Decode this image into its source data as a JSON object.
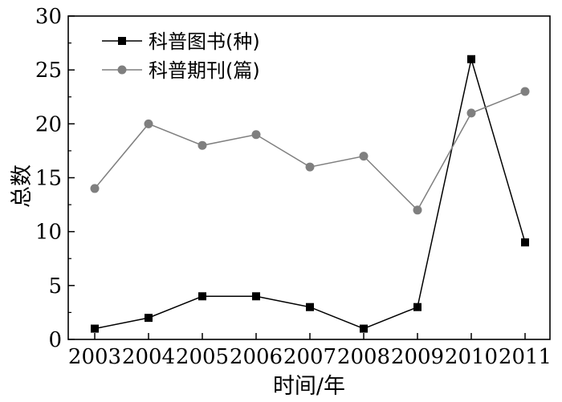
{
  "chart_data": {
    "type": "line",
    "x": [
      "2003",
      "2004",
      "2005",
      "2006",
      "2007",
      "2008",
      "2009",
      "2010",
      "2011"
    ],
    "series": [
      {
        "name": "科普图书(种)",
        "values": [
          1,
          2,
          4,
          4,
          3,
          1,
          3,
          26,
          9
        ],
        "color": "#000000",
        "marker": "square"
      },
      {
        "name": "科普期刊(篇)",
        "values": [
          14,
          20,
          18,
          19,
          16,
          17,
          12,
          21,
          23
        ],
        "color": "#7f7f7f",
        "marker": "circle"
      }
    ],
    "xlabel": "时间/年",
    "ylabel": "总数",
    "ylim": [
      0,
      30
    ],
    "yticks": [
      "0",
      "5",
      "10",
      "15",
      "20",
      "25",
      "30"
    ],
    "grid": false,
    "legend_position": "top-left"
  }
}
